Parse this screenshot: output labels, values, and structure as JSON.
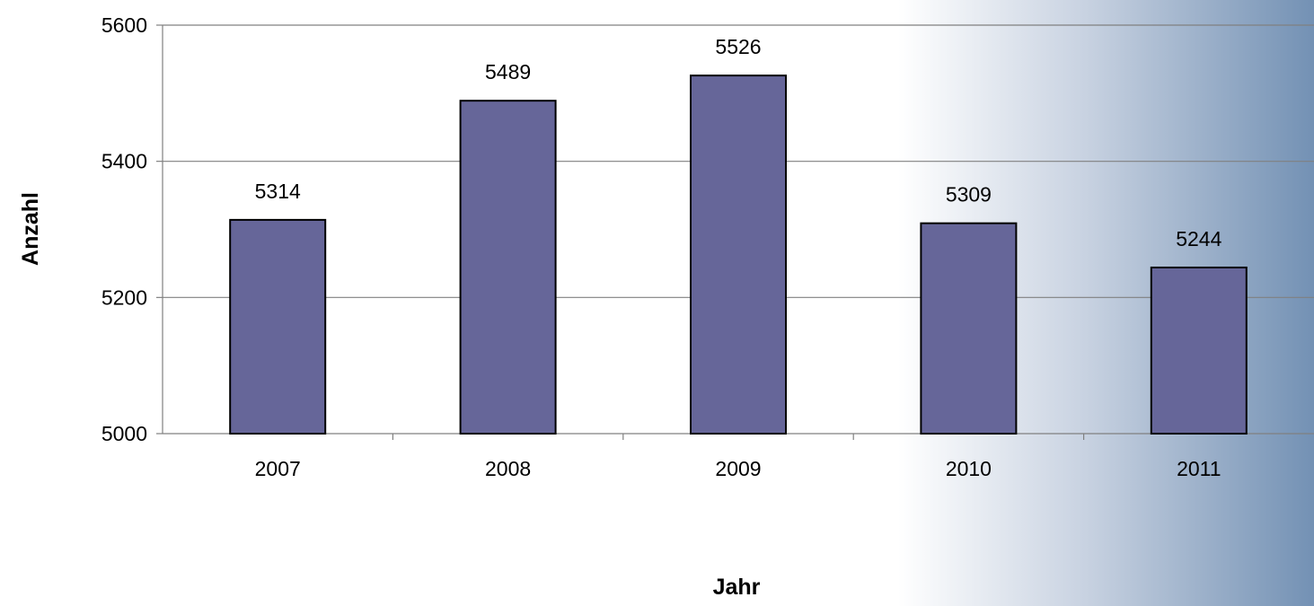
{
  "chart_data": {
    "type": "bar",
    "categories": [
      "2007",
      "2008",
      "2009",
      "2010",
      "2011"
    ],
    "values": [
      5314,
      5489,
      5526,
      5309,
      5244
    ],
    "data_labels": [
      "5314",
      "5489",
      "5526",
      "5309",
      "5244"
    ],
    "xlabel": "Jahr",
    "ylabel": "Anzahl",
    "ylim": [
      5000,
      5600
    ],
    "yticks": [
      5000,
      5200,
      5400,
      5600
    ],
    "ytick_labels": [
      "5000",
      "5200",
      "5400",
      "5600"
    ],
    "grid": true,
    "legend": "none",
    "colors": {
      "bar_fill": "#666699",
      "bar_stroke": "#000000",
      "grid": "#808080",
      "axis": "#808080",
      "background_gradient_end": "#7391b4"
    }
  }
}
